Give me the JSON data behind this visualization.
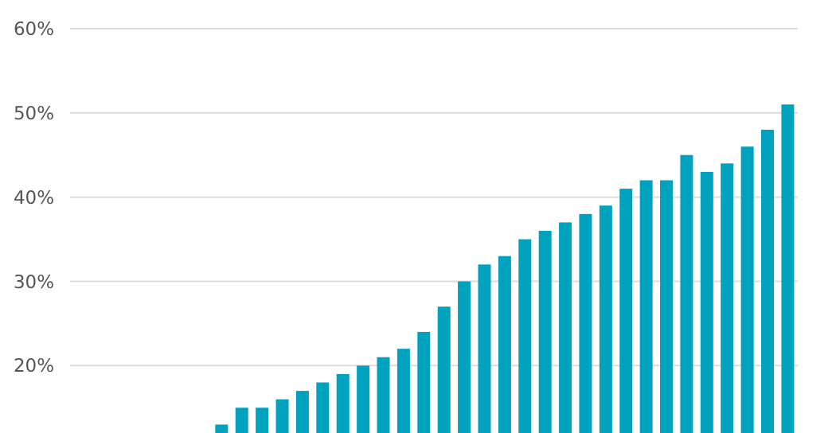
{
  "chart_data": {
    "type": "bar",
    "categories": [
      null,
      null,
      null,
      null,
      null,
      null,
      null,
      null,
      null,
      null,
      null,
      null,
      null,
      null,
      null,
      null,
      null,
      null,
      null,
      null,
      null,
      null,
      null,
      null,
      null,
      null,
      null,
      null,
      null,
      null,
      null,
      null,
      null,
      null,
      null,
      null
    ],
    "values": [
      null,
      null,
      null,
      null,
      null,
      null,
      null,
      13,
      15,
      15,
      16,
      17,
      18,
      19,
      20,
      21,
      22,
      24,
      27,
      30,
      32,
      33,
      35,
      36,
      37,
      38,
      39,
      41,
      42,
      42,
      45,
      43,
      44,
      46,
      48,
      51
    ],
    "color": "#00a2bd",
    "ylim": [
      12,
      60
    ],
    "yticks": [
      {
        "value": 20,
        "label": "20%"
      },
      {
        "value": 30,
        "label": "30%"
      },
      {
        "value": 40,
        "label": "40%"
      },
      {
        "value": 50,
        "label": "50%"
      },
      {
        "value": 60,
        "label": "60%"
      }
    ],
    "grid": "y",
    "tick_labels": "y"
  }
}
